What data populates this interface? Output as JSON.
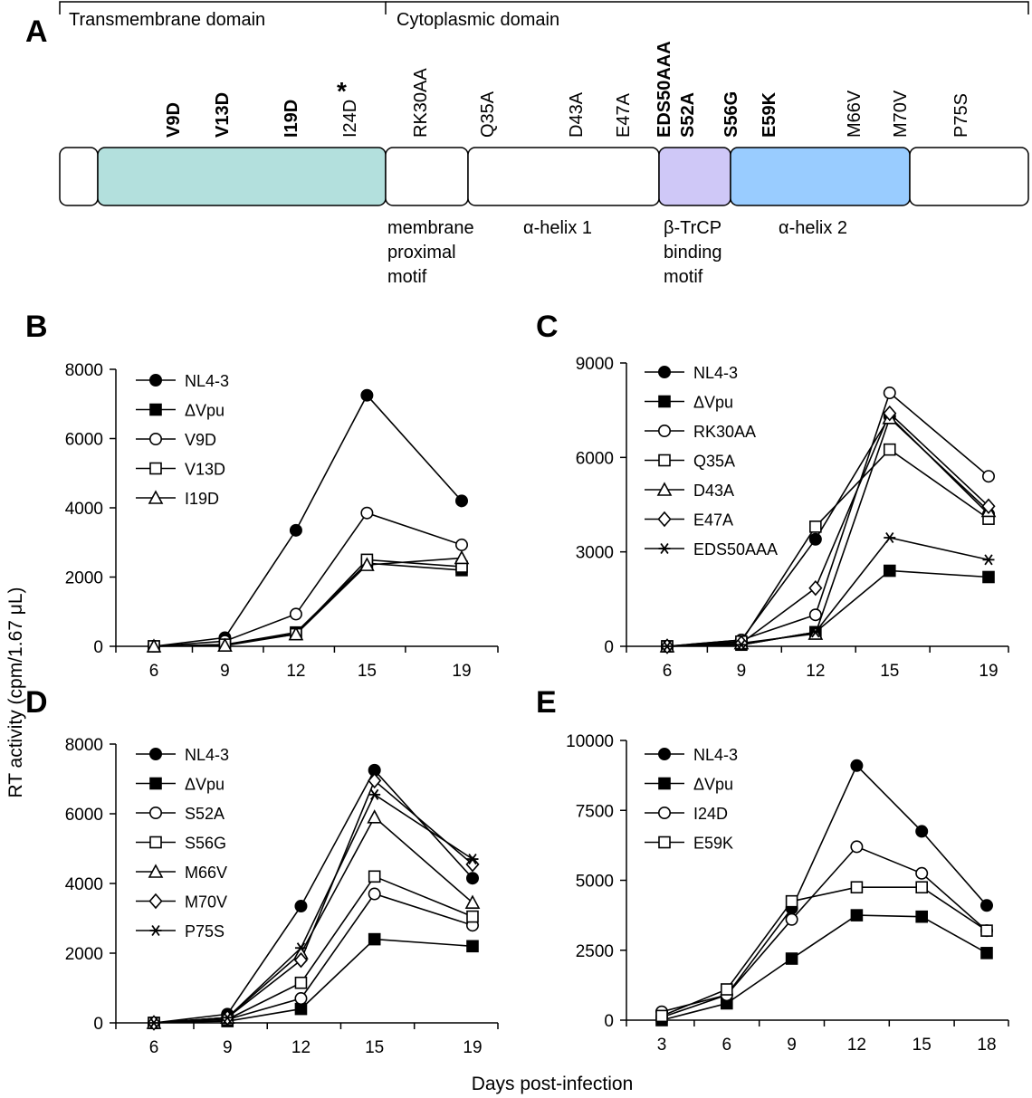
{
  "panel_a": {
    "letter": "A",
    "domains": {
      "transmembrane": "Transmembrane domain",
      "cytoplasmic": "Cytoplasmic domain"
    },
    "mutations": [
      {
        "text": "V9D",
        "bold": true
      },
      {
        "text": "V13D",
        "bold": true
      },
      {
        "text": "I19D",
        "bold": true
      },
      {
        "text": "I24D",
        "bold": false,
        "star": "*"
      },
      {
        "text": "RK30AA",
        "bold": false
      },
      {
        "text": "Q35A",
        "bold": false
      },
      {
        "text": "D43A",
        "bold": false
      },
      {
        "text": "E47A",
        "bold": false
      },
      {
        "text": "EDS50AAA",
        "bold": true
      },
      {
        "text": "S52A",
        "bold": true
      },
      {
        "text": "S56G",
        "bold": true
      },
      {
        "text": "E59K",
        "bold": true
      },
      {
        "text": "M66V",
        "bold": false
      },
      {
        "text": "M70V",
        "bold": false
      },
      {
        "text": "P75S",
        "bold": false
      }
    ],
    "regions": {
      "membrane_proximal": [
        "membrane",
        "proximal",
        "motif"
      ],
      "helix1": "α-helix 1",
      "btrcp": [
        "β-TrCP",
        "binding",
        "motif"
      ],
      "helix2": "α-helix 2"
    },
    "colors": {
      "transmembrane": "#b3e0dd",
      "btrcp": "#cfc8f7",
      "helix2": "#99ccff",
      "plain": "#ffffff"
    }
  },
  "axes": {
    "ylabel": "RT activity (cpm/1.67 μL)",
    "xlabel": "Days post-infection"
  },
  "chart_data": [
    {
      "panel": "B",
      "type": "line",
      "x": [
        6,
        9,
        12,
        15,
        19
      ],
      "xticks": [
        "6",
        "9",
        "12",
        "15",
        "19"
      ],
      "ylim": [
        0,
        8000
      ],
      "yticks": [
        "0",
        "2000",
        "4000",
        "6000",
        "8000"
      ],
      "series": [
        {
          "name": "NL4-3",
          "marker": "circle-filled",
          "values": [
            0,
            250,
            3350,
            7250,
            4200
          ]
        },
        {
          "name": "ΔVpu",
          "marker": "square-filled",
          "values": [
            0,
            50,
            400,
            2400,
            2200
          ]
        },
        {
          "name": "V9D",
          "marker": "circle-open",
          "values": [
            0,
            150,
            930,
            3850,
            2930
          ]
        },
        {
          "name": "V13D",
          "marker": "square-open",
          "values": [
            0,
            50,
            350,
            2500,
            2300
          ]
        },
        {
          "name": "I19D",
          "marker": "triangle-open",
          "values": [
            0,
            20,
            350,
            2350,
            2550
          ]
        }
      ]
    },
    {
      "panel": "C",
      "type": "line",
      "x": [
        6,
        9,
        12,
        15,
        19
      ],
      "xticks": [
        "6",
        "9",
        "12",
        "15",
        "19"
      ],
      "ylim": [
        0,
        9000
      ],
      "yticks": [
        "0",
        "3000",
        "6000",
        "9000"
      ],
      "series": [
        {
          "name": "NL4-3",
          "marker": "circle-filled",
          "values": [
            0,
            200,
            3400,
            7300,
            4200
          ]
        },
        {
          "name": "ΔVpu",
          "marker": "square-filled",
          "values": [
            0,
            50,
            450,
            2400,
            2200
          ]
        },
        {
          "name": "RK30AA",
          "marker": "circle-open",
          "values": [
            0,
            200,
            1000,
            8050,
            5400
          ]
        },
        {
          "name": "Q35A",
          "marker": "square-open",
          "values": [
            0,
            150,
            3800,
            6250,
            4050
          ]
        },
        {
          "name": "D43A",
          "marker": "triangle-open",
          "values": [
            0,
            100,
            400,
            7250,
            4300
          ]
        },
        {
          "name": "E47A",
          "marker": "diamond-open",
          "values": [
            0,
            100,
            1850,
            7400,
            4450
          ]
        },
        {
          "name": "EDS50AAA",
          "marker": "asterisk",
          "values": [
            0,
            50,
            450,
            3450,
            2750
          ]
        }
      ]
    },
    {
      "panel": "D",
      "type": "line",
      "x": [
        6,
        9,
        12,
        15,
        19
      ],
      "xticks": [
        "6",
        "9",
        "12",
        "15",
        "19"
      ],
      "ylim": [
        0,
        8000
      ],
      "yticks": [
        "0",
        "2000",
        "4000",
        "6000",
        "8000"
      ],
      "series": [
        {
          "name": "NL4-3",
          "marker": "circle-filled",
          "values": [
            0,
            250,
            3350,
            7250,
            4150
          ]
        },
        {
          "name": "ΔVpu",
          "marker": "square-filled",
          "values": [
            0,
            50,
            400,
            2400,
            2200
          ]
        },
        {
          "name": "S52A",
          "marker": "circle-open",
          "values": [
            0,
            100,
            700,
            3700,
            2800
          ]
        },
        {
          "name": "S56G",
          "marker": "square-open",
          "values": [
            0,
            100,
            1150,
            4200,
            3050
          ]
        },
        {
          "name": "M66V",
          "marker": "triangle-open",
          "values": [
            0,
            150,
            2000,
            5900,
            3450
          ]
        },
        {
          "name": "M70V",
          "marker": "diamond-open",
          "values": [
            0,
            150,
            1800,
            6950,
            4550
          ]
        },
        {
          "name": "P75S",
          "marker": "asterisk",
          "values": [
            0,
            150,
            2150,
            6550,
            4700
          ]
        }
      ]
    },
    {
      "panel": "E",
      "type": "line",
      "x": [
        3,
        6,
        9,
        12,
        15,
        18
      ],
      "xticks": [
        "3",
        "6",
        "9",
        "12",
        "15",
        "18"
      ],
      "ylim": [
        0,
        10000
      ],
      "yticks": [
        "0",
        "2500",
        "5000",
        "7500",
        "10000"
      ],
      "series": [
        {
          "name": "NL4-3",
          "marker": "circle-filled",
          "values": [
            100,
            900,
            4000,
            9100,
            6750,
            4100
          ]
        },
        {
          "name": "ΔVpu",
          "marker": "square-filled",
          "values": [
            0,
            600,
            2200,
            3750,
            3700,
            2400
          ]
        },
        {
          "name": "I24D",
          "marker": "circle-open",
          "values": [
            300,
            900,
            3600,
            6200,
            5250,
            3200
          ]
        },
        {
          "name": "E59K",
          "marker": "square-open",
          "values": [
            150,
            1100,
            4250,
            4750,
            4750,
            3200
          ]
        }
      ]
    }
  ]
}
